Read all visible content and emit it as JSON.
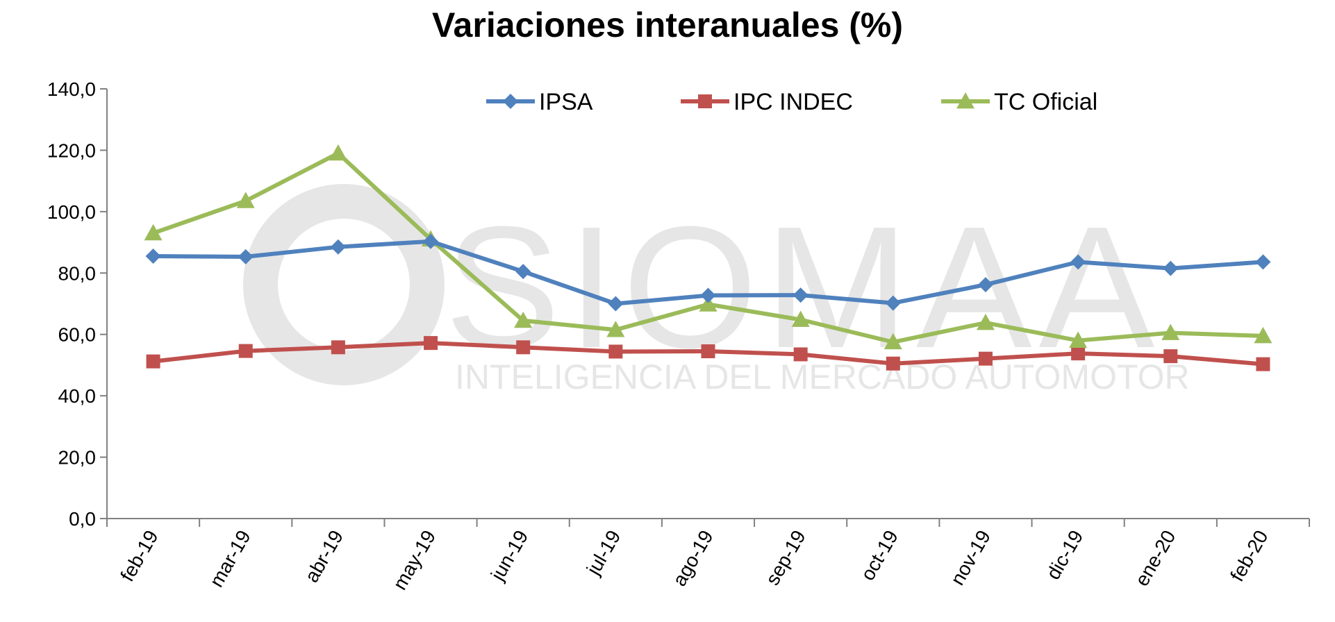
{
  "chart_data": {
    "type": "line",
    "title": "Variaciones interanuales (%)",
    "xlabel": "",
    "ylabel": "",
    "categories": [
      "feb-19",
      "mar-19",
      "abr-19",
      "may-19",
      "jun-19",
      "jul-19",
      "ago-19",
      "sep-19",
      "oct-19",
      "nov-19",
      "dic-19",
      "ene-20",
      "feb-20"
    ],
    "ylim": [
      0,
      140
    ],
    "yticks": [
      "0,0",
      "20,0",
      "40,0",
      "60,0",
      "80,0",
      "100,0",
      "120,0",
      "140,0"
    ],
    "grid": false,
    "legend_position": "top",
    "series": [
      {
        "name": "IPSA",
        "color": "#4F81BD",
        "marker": "diamond",
        "values": [
          85.5,
          85.3,
          88.5,
          90.3,
          80.5,
          70.0,
          72.7,
          72.8,
          70.2,
          76.2,
          83.6,
          81.5,
          83.6
        ]
      },
      {
        "name": "IPC INDEC",
        "color": "#C0504D",
        "marker": "square",
        "values": [
          51.2,
          54.6,
          55.8,
          57.2,
          55.8,
          54.4,
          54.5,
          53.5,
          50.5,
          52.1,
          53.8,
          52.9,
          50.3
        ]
      },
      {
        "name": "TC Oficial",
        "color": "#9BBB59",
        "marker": "triangle",
        "values": [
          93.0,
          103.5,
          119.0,
          91.0,
          64.5,
          61.5,
          69.8,
          64.8,
          57.5,
          63.8,
          58.0,
          60.5,
          59.5
        ]
      }
    ]
  },
  "watermark": {
    "brand": "SIOMAA",
    "tagline": "INTELIGENCIA DEL MERCADO AUTOMOTOR"
  }
}
